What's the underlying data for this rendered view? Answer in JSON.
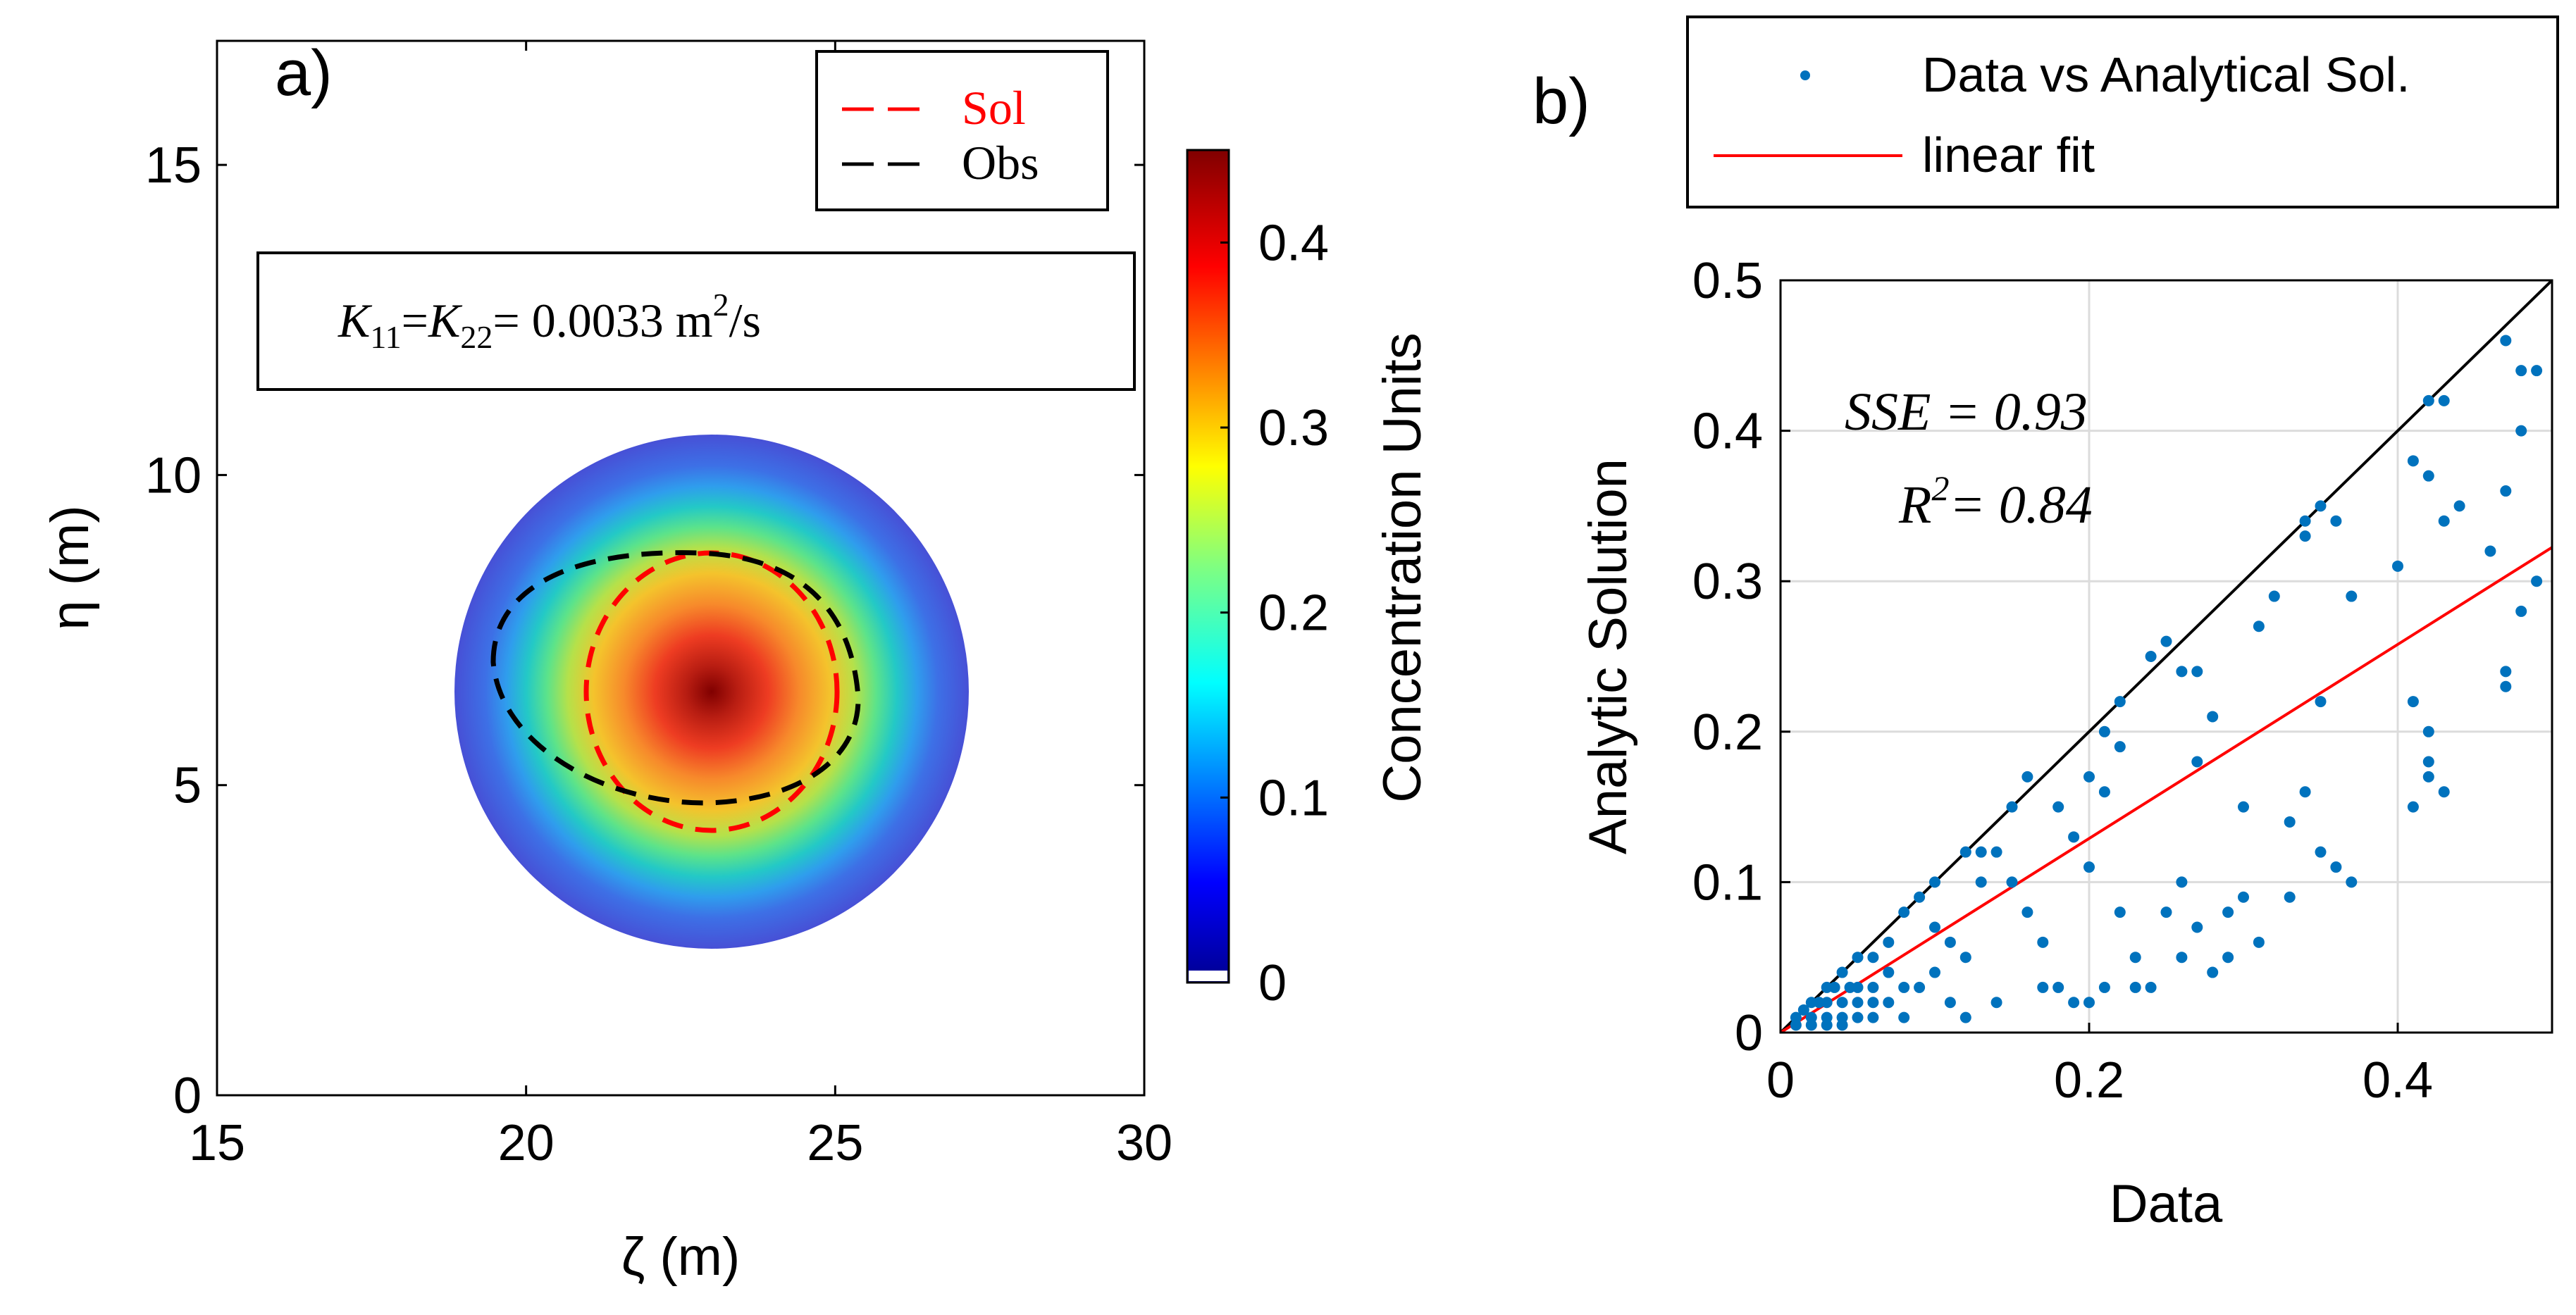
{
  "chart_data": [
    {
      "panel": "a)",
      "type": "heatmap",
      "title": "",
      "xlabel": "ζ (m)",
      "ylabel": "η (m)",
      "xlim": [
        15,
        30
      ],
      "ylim": [
        0,
        17
      ],
      "xticks": [
        15,
        20,
        25,
        30
      ],
      "yticks": [
        0,
        5,
        10,
        15
      ],
      "field": {
        "center": [
          23.1,
          6.7
        ],
        "radius": 4.1,
        "peak": 0.45
      },
      "contours": [
        {
          "name": "Sol",
          "color": "#ff0000",
          "center": [
            23.1,
            6.7
          ],
          "rx": 2.0,
          "ry": 2.0
        },
        {
          "name": "Obs",
          "color": "#000000",
          "center": [
            22.4,
            6.8
          ],
          "rx": 3.0,
          "ry": 2.0
        }
      ],
      "legend": {
        "placement": "top-right",
        "entries": [
          "Sol",
          "Obs"
        ]
      },
      "annotation": {
        "text": "K11=K22= 0.0033 m2/s",
        "lhs1": "K",
        "sub1": "11",
        "eq1": "=",
        "lhs2": "K",
        "sub2": "22",
        "eq2": "= 0.0033 m",
        "sup": "2",
        "unit": "/s"
      },
      "colorbar": {
        "label": "Concentration Units",
        "ticks": [
          0,
          0.1,
          0.2,
          0.3,
          0.4
        ],
        "range": [
          0,
          0.45
        ]
      }
    },
    {
      "panel": "b)",
      "type": "scatter",
      "xlabel": "Data",
      "ylabel": "Analytic Solution",
      "xlim": [
        0,
        0.5
      ],
      "ylim": [
        0,
        0.5
      ],
      "xticks": [
        0,
        0.2,
        0.4
      ],
      "yticks": [
        0,
        0.1,
        0.2,
        0.3,
        0.4,
        0.5
      ],
      "grid": true,
      "legend": {
        "placement": "top",
        "entries": [
          "Data vs Analytical Sol.",
          "linear fit"
        ]
      },
      "annotations": {
        "sse": "SSE = 0.93",
        "r2_base": "R",
        "r2_sup": "2",
        "r2_rest": "= 0.84"
      },
      "fit": {
        "name": "linear fit",
        "slope": 0.645,
        "intercept": 0.0,
        "color": "#ff0000"
      },
      "identity_line": {
        "slope": 1,
        "color": "#000000"
      },
      "series": [
        {
          "name": "Data vs Analytical Sol.",
          "color": "#0072bd",
          "points": [
            [
              0.47,
              0.46
            ],
            [
              0.48,
              0.44
            ],
            [
              0.49,
              0.44
            ],
            [
              0.48,
              0.4
            ],
            [
              0.47,
              0.36
            ],
            [
              0.46,
              0.32
            ],
            [
              0.49,
              0.3
            ],
            [
              0.48,
              0.28
            ],
            [
              0.47,
              0.24
            ],
            [
              0.47,
              0.23
            ],
            [
              0.43,
              0.42
            ],
            [
              0.42,
              0.42
            ],
            [
              0.41,
              0.38
            ],
            [
              0.42,
              0.37
            ],
            [
              0.44,
              0.35
            ],
            [
              0.43,
              0.34
            ],
            [
              0.4,
              0.31
            ],
            [
              0.41,
              0.22
            ],
            [
              0.42,
              0.2
            ],
            [
              0.42,
              0.18
            ],
            [
              0.43,
              0.16
            ],
            [
              0.42,
              0.17
            ],
            [
              0.41,
              0.15
            ],
            [
              0.37,
              0.29
            ],
            [
              0.35,
              0.35
            ],
            [
              0.34,
              0.34
            ],
            [
              0.34,
              0.33
            ],
            [
              0.36,
              0.34
            ],
            [
              0.32,
              0.29
            ],
            [
              0.31,
              0.27
            ],
            [
              0.35,
              0.22
            ],
            [
              0.34,
              0.16
            ],
            [
              0.33,
              0.14
            ],
            [
              0.35,
              0.12
            ],
            [
              0.36,
              0.11
            ],
            [
              0.37,
              0.1
            ],
            [
              0.3,
              0.15
            ],
            [
              0.29,
              0.08
            ],
            [
              0.31,
              0.06
            ],
            [
              0.28,
              0.04
            ],
            [
              0.25,
              0.26
            ],
            [
              0.24,
              0.25
            ],
            [
              0.26,
              0.24
            ],
            [
              0.27,
              0.24
            ],
            [
              0.28,
              0.21
            ],
            [
              0.27,
              0.18
            ],
            [
              0.26,
              0.1
            ],
            [
              0.25,
              0.08
            ],
            [
              0.27,
              0.07
            ],
            [
              0.29,
              0.05
            ],
            [
              0.22,
              0.22
            ],
            [
              0.21,
              0.2
            ],
            [
              0.2,
              0.17
            ],
            [
              0.21,
              0.16
            ],
            [
              0.19,
              0.13
            ],
            [
              0.2,
              0.11
            ],
            [
              0.22,
              0.08
            ],
            [
              0.23,
              0.05
            ],
            [
              0.24,
              0.03
            ],
            [
              0.21,
              0.03
            ],
            [
              0.16,
              0.17
            ],
            [
              0.15,
              0.15
            ],
            [
              0.14,
              0.12
            ],
            [
              0.13,
              0.12
            ],
            [
              0.15,
              0.1
            ],
            [
              0.16,
              0.08
            ],
            [
              0.17,
              0.06
            ],
            [
              0.18,
              0.03
            ],
            [
              0.19,
              0.02
            ],
            [
              0.14,
              0.02
            ],
            [
              0.1,
              0.1
            ],
            [
              0.09,
              0.09
            ],
            [
              0.08,
              0.08
            ],
            [
              0.1,
              0.07
            ],
            [
              0.11,
              0.06
            ],
            [
              0.12,
              0.05
            ],
            [
              0.1,
              0.04
            ],
            [
              0.09,
              0.03
            ],
            [
              0.11,
              0.02
            ],
            [
              0.12,
              0.01
            ],
            [
              0.07,
              0.06
            ],
            [
              0.06,
              0.05
            ],
            [
              0.07,
              0.04
            ],
            [
              0.08,
              0.03
            ],
            [
              0.06,
              0.03
            ],
            [
              0.05,
              0.05
            ],
            [
              0.05,
              0.03
            ],
            [
              0.07,
              0.02
            ],
            [
              0.08,
              0.01
            ],
            [
              0.06,
              0.01
            ],
            [
              0.04,
              0.04
            ],
            [
              0.03,
              0.03
            ],
            [
              0.04,
              0.02
            ],
            [
              0.02,
              0.02
            ],
            [
              0.03,
              0.02
            ],
            [
              0.02,
              0.01
            ],
            [
              0.03,
              0.01
            ],
            [
              0.04,
              0.01
            ],
            [
              0.05,
              0.01
            ],
            [
              0.01,
              0.01
            ],
            [
              0.02,
              0.005
            ],
            [
              0.03,
              0.005
            ],
            [
              0.01,
              0.005
            ],
            [
              0.04,
              0.005
            ],
            [
              0.05,
              0.02
            ],
            [
              0.06,
              0.02
            ],
            [
              0.015,
              0.015
            ],
            [
              0.025,
              0.02
            ],
            [
              0.035,
              0.03
            ],
            [
              0.045,
              0.03
            ],
            [
              0.17,
              0.03
            ],
            [
              0.2,
              0.02
            ],
            [
              0.23,
              0.03
            ],
            [
              0.26,
              0.05
            ],
            [
              0.3,
              0.09
            ],
            [
              0.33,
              0.09
            ],
            [
              0.12,
              0.12
            ],
            [
              0.13,
              0.1
            ],
            [
              0.18,
              0.15
            ],
            [
              0.22,
              0.19
            ]
          ]
        }
      ]
    }
  ]
}
